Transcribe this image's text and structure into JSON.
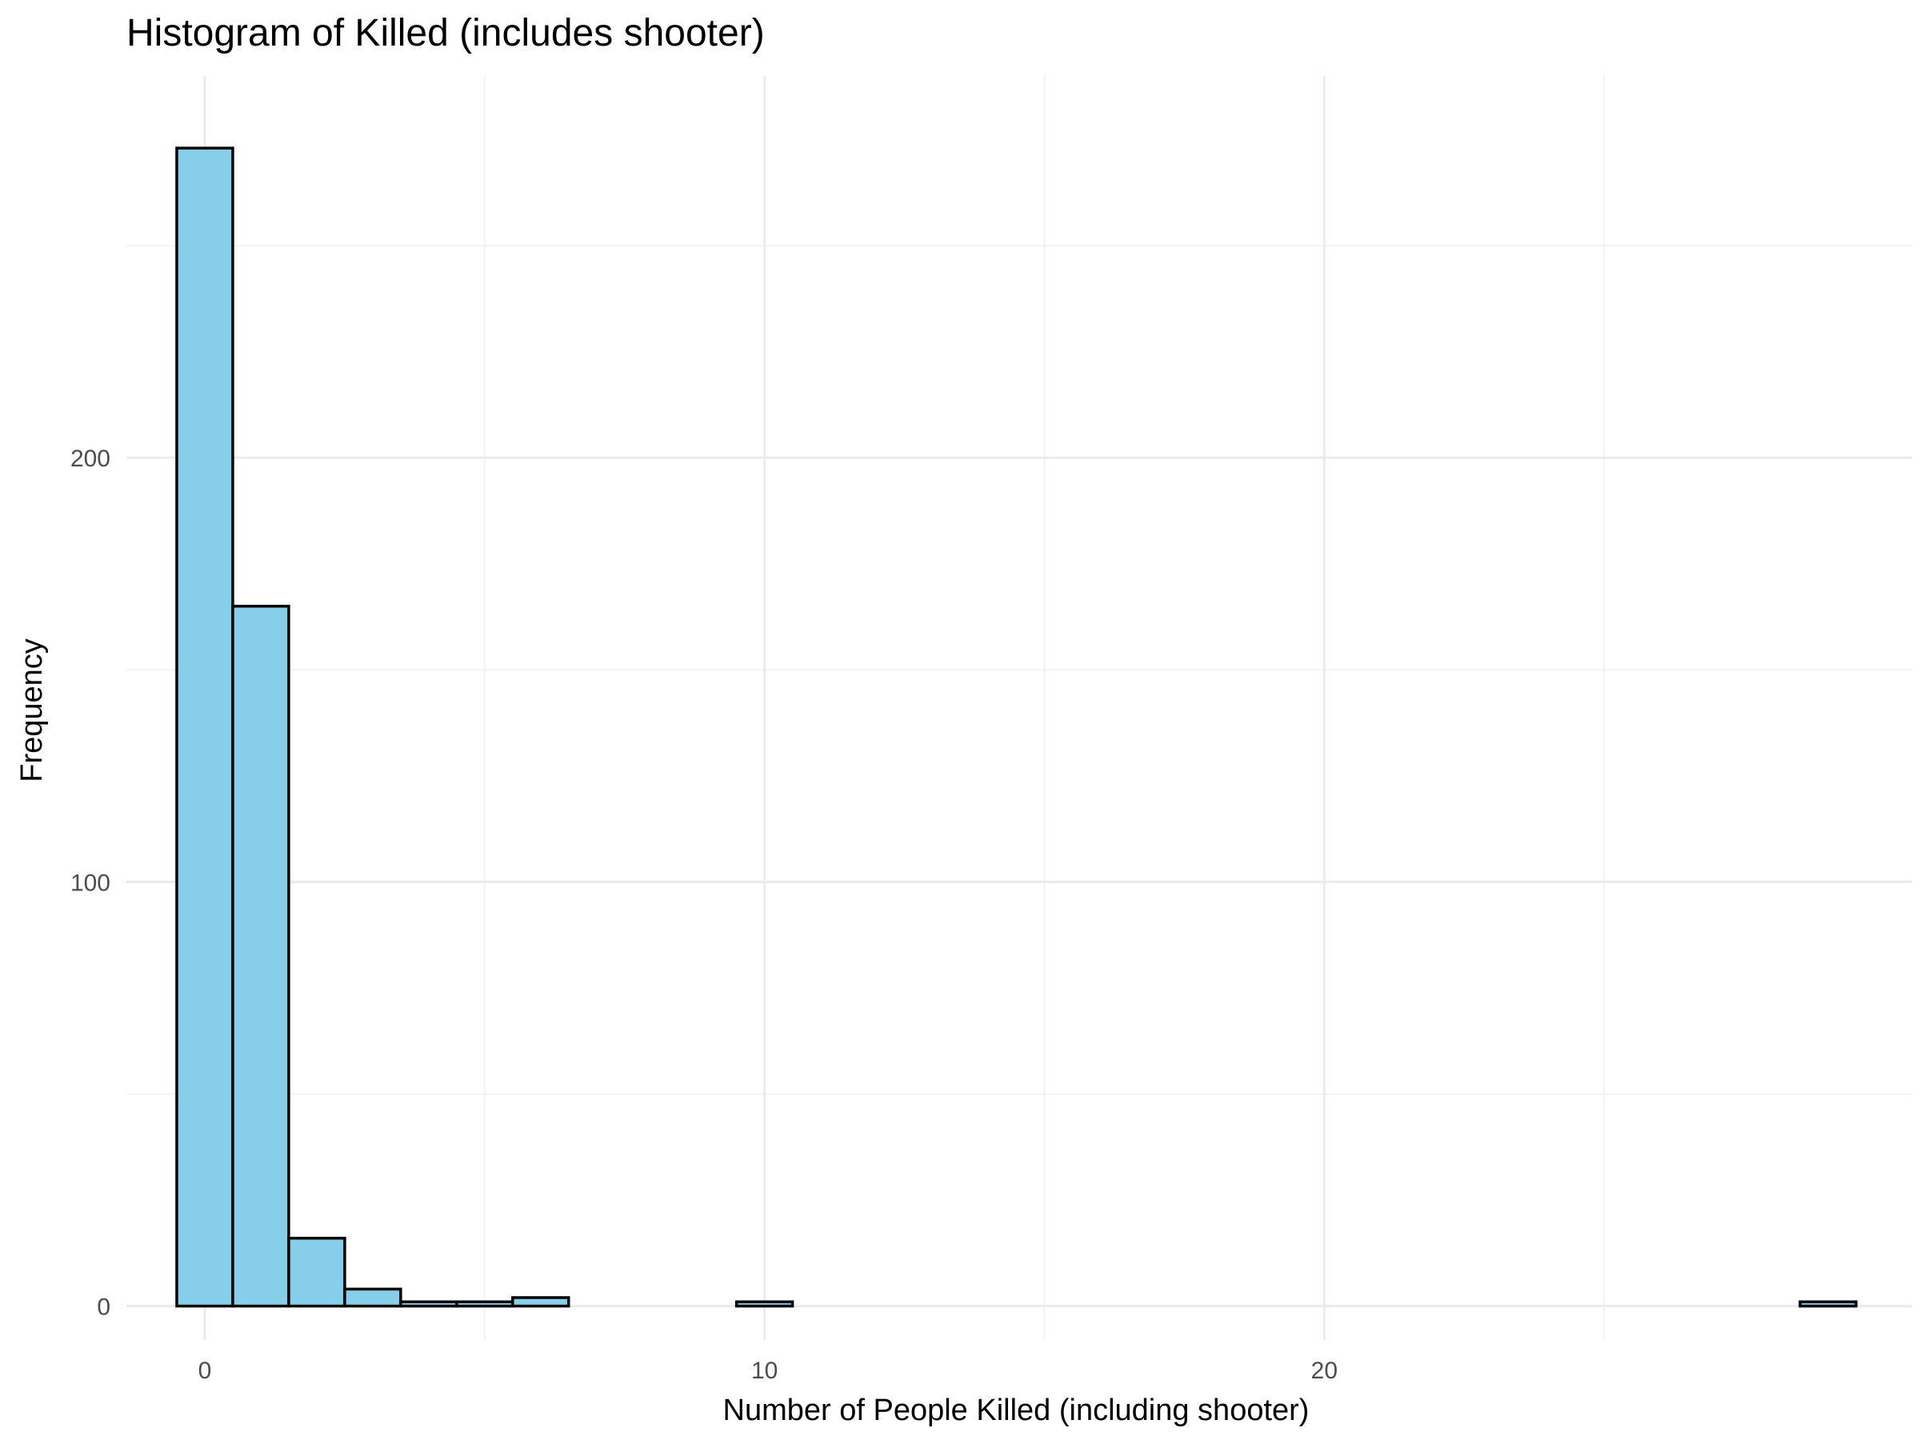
{
  "chart_data": {
    "type": "bar",
    "title": "Histogram of Killed (includes shooter)",
    "xlabel": "Number of People Killed (including shooter)",
    "ylabel": "Frequency",
    "xlim": [
      -1.4,
      30.5
    ],
    "ylim": [
      -8,
      290
    ],
    "x_ticks": [
      0,
      10,
      20
    ],
    "x_minor": [
      5,
      15,
      25
    ],
    "y_ticks": [
      0,
      100,
      200
    ],
    "y_minor": [
      50,
      150,
      250
    ],
    "bin_width": 1,
    "bins": [
      {
        "x": 0,
        "count": 273
      },
      {
        "x": 1,
        "count": 165
      },
      {
        "x": 2,
        "count": 16
      },
      {
        "x": 3,
        "count": 4
      },
      {
        "x": 4,
        "count": 1
      },
      {
        "x": 5,
        "count": 1
      },
      {
        "x": 6,
        "count": 2
      },
      {
        "x": 7,
        "count": 0
      },
      {
        "x": 8,
        "count": 0
      },
      {
        "x": 9,
        "count": 0
      },
      {
        "x": 10,
        "count": 1
      },
      {
        "x": 11,
        "count": 0
      },
      {
        "x": 12,
        "count": 0
      },
      {
        "x": 13,
        "count": 0
      },
      {
        "x": 14,
        "count": 0
      },
      {
        "x": 15,
        "count": 0
      },
      {
        "x": 16,
        "count": 0
      },
      {
        "x": 17,
        "count": 0
      },
      {
        "x": 18,
        "count": 0
      },
      {
        "x": 19,
        "count": 0
      },
      {
        "x": 20,
        "count": 0
      },
      {
        "x": 21,
        "count": 0
      },
      {
        "x": 22,
        "count": 0
      },
      {
        "x": 23,
        "count": 0
      },
      {
        "x": 24,
        "count": 0
      },
      {
        "x": 25,
        "count": 0
      },
      {
        "x": 26,
        "count": 0
      },
      {
        "x": 27,
        "count": 0
      },
      {
        "x": 28,
        "count": 0
      },
      {
        "x": 29,
        "count": 1
      }
    ],
    "colors": {
      "fill": "#87ceeb",
      "outline": "#000000"
    },
    "grid": true,
    "legend": "none"
  }
}
